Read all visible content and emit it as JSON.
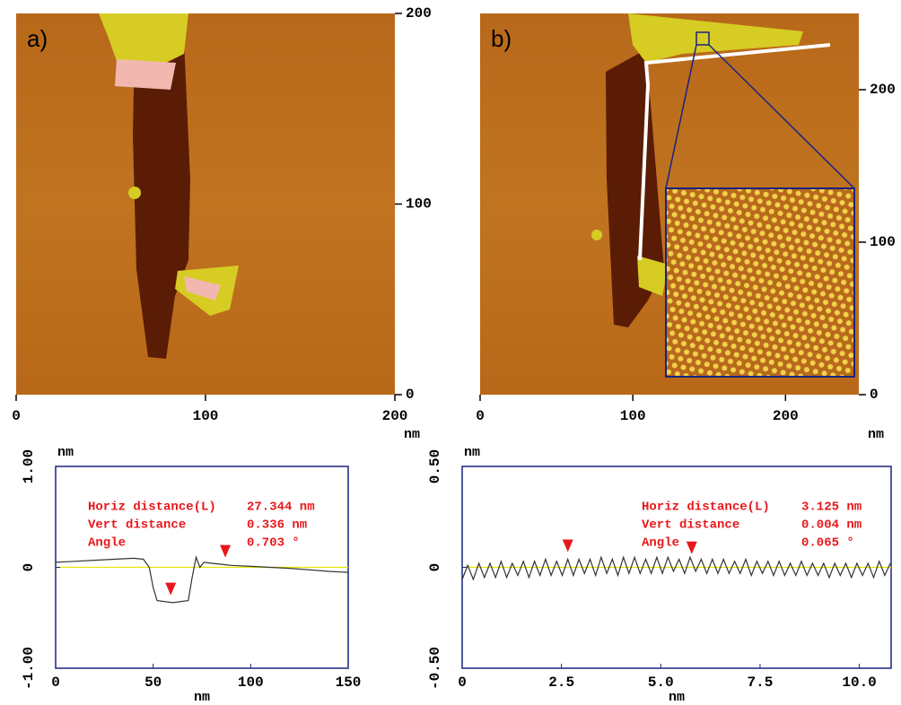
{
  "chart_data": [
    {
      "type": "image",
      "label": "a)",
      "x_label": "nm",
      "xlim": [
        0,
        200
      ],
      "ylim": [
        0,
        200
      ],
      "xticks": [
        0,
        100,
        200
      ],
      "yticks": [
        0,
        100,
        200
      ]
    },
    {
      "type": "image",
      "label": "b)",
      "x_label": "nm",
      "xlim": [
        0,
        248
      ],
      "ylim": [
        0,
        250
      ],
      "xticks": [
        0,
        100,
        200
      ],
      "yticks": [
        0,
        100,
        200
      ]
    },
    {
      "type": "line",
      "x_label": "nm",
      "y_label": "nm",
      "color": "#333333",
      "reference_color": "#e6e600",
      "xlim": [
        0,
        150
      ],
      "ylim": [
        -1,
        1
      ],
      "xticks": [
        0,
        50,
        100,
        150
      ],
      "yticks": [
        {
          "value": -1,
          "label": "-1.00"
        },
        0,
        {
          "value": 1,
          "label": "1.00"
        }
      ],
      "x": [
        0,
        10,
        20,
        30,
        40,
        45,
        48,
        50,
        52,
        60,
        68,
        70,
        72,
        74,
        76,
        80,
        90,
        100,
        120,
        140,
        150
      ],
      "values": [
        0.05,
        0.06,
        0.07,
        0.08,
        0.09,
        0.08,
        0.0,
        -0.2,
        -0.33,
        -0.35,
        -0.33,
        -0.1,
        0.1,
        0.0,
        0.05,
        0.04,
        0.02,
        0.01,
        -0.01,
        -0.04,
        -0.05
      ],
      "markers": {
        "x": [
          59,
          87
        ],
        "color": "#e8171b"
      },
      "annotations": [
        {
          "text": "Horiz distance(L)",
          "reading": "27.344 nm"
        },
        {
          "text": "Vert distance",
          "reading": "0.336 nm"
        },
        {
          "text": "Angle",
          "reading": "0.703 °"
        }
      ]
    },
    {
      "type": "line",
      "x_label": "nm",
      "y_label": "nm",
      "color": "#333333",
      "reference_color": "#e6e600",
      "xlim": [
        0,
        10.8
      ],
      "ylim": [
        -0.5,
        0.5
      ],
      "xticks": [
        0,
        2.5,
        {
          "value": 5,
          "label": "5.0"
        },
        7.5,
        {
          "value": 10,
          "label": "10.0"
        }
      ],
      "yticks": [
        {
          "value": -0.5,
          "label": "-0.50"
        },
        0,
        {
          "value": 0.5,
          "label": "0.50"
        }
      ],
      "x": [
        0,
        0.14,
        0.28,
        0.42,
        0.56,
        0.7,
        0.84,
        0.98,
        1.12,
        1.26,
        1.4,
        1.54,
        1.68,
        1.82,
        1.96,
        2.1,
        2.24,
        2.38,
        2.52,
        2.66,
        2.8,
        2.94,
        3.08,
        3.22,
        3.36,
        3.5,
        3.64,
        3.78,
        3.92,
        4.06,
        4.2,
        4.34,
        4.48,
        4.62,
        4.76,
        4.9,
        5.04,
        5.18,
        5.32,
        5.46,
        5.6,
        5.74,
        5.88,
        6.02,
        6.16,
        6.3,
        6.44,
        6.58,
        6.72,
        6.86,
        7,
        7.14,
        7.28,
        7.42,
        7.56,
        7.7,
        7.84,
        7.98,
        8.12,
        8.26,
        8.4,
        8.54,
        8.68,
        8.82,
        8.96,
        9.1,
        9.24,
        9.38,
        9.52,
        9.66,
        9.8,
        9.94,
        10.08,
        10.22,
        10.36,
        10.5,
        10.64,
        10.78
      ],
      "values": [
        -0.06,
        0.01,
        -0.06,
        0.02,
        -0.05,
        0.02,
        -0.05,
        0.03,
        -0.05,
        0.02,
        -0.04,
        0.03,
        -0.05,
        0.03,
        -0.04,
        0.04,
        -0.04,
        0.03,
        -0.04,
        0.04,
        -0.04,
        0.04,
        -0.03,
        0.04,
        -0.04,
        0.05,
        -0.03,
        0.04,
        -0.04,
        0.05,
        -0.03,
        0.05,
        -0.03,
        0.04,
        -0.03,
        0.05,
        -0.03,
        0.05,
        -0.02,
        0.04,
        -0.03,
        0.05,
        -0.02,
        0.04,
        -0.03,
        0.04,
        -0.03,
        0.04,
        -0.03,
        0.03,
        -0.03,
        0.04,
        -0.04,
        0.03,
        -0.03,
        0.03,
        -0.04,
        0.03,
        -0.04,
        0.02,
        -0.04,
        0.03,
        -0.04,
        0.02,
        -0.04,
        0.02,
        -0.05,
        0.02,
        -0.04,
        0.02,
        -0.05,
        0.02,
        -0.04,
        0.02,
        -0.05,
        0.03,
        -0.04,
        0.02
      ],
      "markers": {
        "x": [
          2.66,
          5.78
        ],
        "color": "#e8171b"
      },
      "annotations": [
        {
          "text": "Horiz distance(L)",
          "reading": "3.125 nm"
        },
        {
          "text": "Vert distance",
          "reading": "0.004 nm"
        },
        {
          "text": "Angle",
          "reading": "0.065 °"
        }
      ]
    }
  ]
}
